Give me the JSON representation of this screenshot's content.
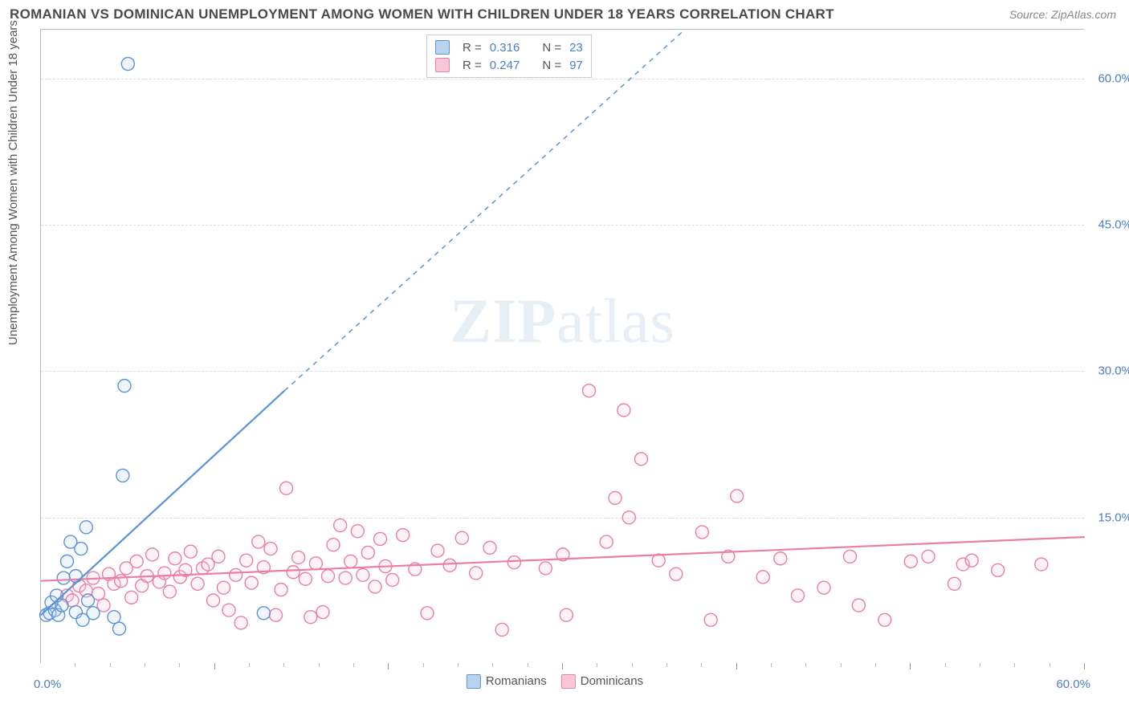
{
  "header": {
    "title": "ROMANIAN VS DOMINICAN UNEMPLOYMENT AMONG WOMEN WITH CHILDREN UNDER 18 YEARS CORRELATION CHART",
    "source": "Source: ZipAtlas.com"
  },
  "watermark": {
    "prefix": "ZIP",
    "suffix": "atlas"
  },
  "chart": {
    "type": "scatter",
    "y_label": "Unemployment Among Women with Children Under 18 years",
    "xlim": [
      0,
      60
    ],
    "ylim": [
      0,
      65
    ],
    "y_ticks": [
      15,
      30,
      45,
      60
    ],
    "y_tick_labels": [
      "15.0%",
      "30.0%",
      "45.0%",
      "60.0%"
    ],
    "x_origin_label": "0.0%",
    "x_end_label": "60.0%",
    "x_major_ticks": [
      10,
      20,
      30,
      40,
      50,
      60
    ],
    "x_minor_ticks": [
      2,
      4,
      6,
      8,
      12,
      14,
      16,
      18,
      22,
      24,
      26,
      28,
      32,
      34,
      36,
      38,
      42,
      44,
      46,
      48,
      52,
      54,
      56,
      58
    ],
    "grid_color": "#dddddd",
    "marker_radius": 8,
    "marker_stroke_width": 1.4,
    "marker_fill_opacity": 0.22,
    "line_width": 2.2
  },
  "series": {
    "romanians": {
      "label": "Romanians",
      "stroke": "#5b93d6",
      "fill": "#b9d2ee",
      "swatch_fill": "#b9d2ee",
      "swatch_border": "#5b93d6",
      "trend": {
        "x1": 0,
        "y1": 5,
        "x2": 14,
        "y2": 28,
        "dash_extend_to_x": 37,
        "dash_extend_to_y": 65
      },
      "points_xy": [
        [
          0.3,
          5.0
        ],
        [
          0.5,
          5.2
        ],
        [
          0.8,
          5.5
        ],
        [
          1.0,
          5.0
        ],
        [
          1.2,
          6.0
        ],
        [
          0.6,
          6.3
        ],
        [
          0.9,
          7.0
        ],
        [
          1.3,
          8.8
        ],
        [
          1.5,
          10.5
        ],
        [
          1.7,
          12.5
        ],
        [
          2.0,
          9.0
        ],
        [
          2.3,
          11.8
        ],
        [
          2.6,
          14.0
        ],
        [
          2.0,
          5.3
        ],
        [
          2.4,
          4.5
        ],
        [
          2.7,
          6.5
        ],
        [
          3.0,
          5.2
        ],
        [
          4.2,
          4.8
        ],
        [
          4.5,
          3.6
        ],
        [
          4.7,
          19.3
        ],
        [
          4.8,
          28.5
        ],
        [
          5.0,
          61.5
        ],
        [
          12.8,
          5.2
        ]
      ]
    },
    "dominicans": {
      "label": "Dominicans",
      "stroke": "#e97fa6",
      "fill": "#f7c7d7",
      "swatch_fill": "#f7c7d7",
      "swatch_border": "#e97fa6",
      "trend": {
        "x1": 0,
        "y1": 8.5,
        "x2": 60,
        "y2": 13
      },
      "points_xy": [
        [
          1.5,
          7.0
        ],
        [
          1.8,
          6.5
        ],
        [
          2.2,
          8.0
        ],
        [
          2.6,
          7.5
        ],
        [
          3.0,
          8.8
        ],
        [
          3.3,
          7.2
        ],
        [
          3.6,
          6.0
        ],
        [
          3.9,
          9.2
        ],
        [
          4.2,
          8.2
        ],
        [
          4.6,
          8.5
        ],
        [
          4.9,
          9.8
        ],
        [
          5.2,
          6.8
        ],
        [
          5.5,
          10.5
        ],
        [
          5.8,
          8.0
        ],
        [
          6.1,
          9.0
        ],
        [
          6.4,
          11.2
        ],
        [
          6.8,
          8.4
        ],
        [
          7.1,
          9.3
        ],
        [
          7.4,
          7.4
        ],
        [
          7.7,
          10.8
        ],
        [
          8.0,
          8.9
        ],
        [
          8.3,
          9.6
        ],
        [
          8.6,
          11.5
        ],
        [
          9.0,
          8.2
        ],
        [
          9.3,
          9.8
        ],
        [
          9.6,
          10.2
        ],
        [
          9.9,
          6.5
        ],
        [
          10.2,
          11.0
        ],
        [
          10.5,
          7.8
        ],
        [
          10.8,
          5.5
        ],
        [
          11.2,
          9.1
        ],
        [
          11.5,
          4.2
        ],
        [
          11.8,
          10.6
        ],
        [
          12.1,
          8.3
        ],
        [
          12.5,
          12.5
        ],
        [
          12.8,
          9.9
        ],
        [
          13.2,
          11.8
        ],
        [
          13.5,
          5.0
        ],
        [
          13.8,
          7.6
        ],
        [
          14.1,
          18.0
        ],
        [
          14.5,
          9.4
        ],
        [
          14.8,
          10.9
        ],
        [
          15.2,
          8.7
        ],
        [
          15.5,
          4.8
        ],
        [
          15.8,
          10.3
        ],
        [
          16.2,
          5.3
        ],
        [
          16.5,
          9.0
        ],
        [
          16.8,
          12.2
        ],
        [
          17.2,
          14.2
        ],
        [
          17.5,
          8.8
        ],
        [
          17.8,
          10.5
        ],
        [
          18.2,
          13.6
        ],
        [
          18.5,
          9.1
        ],
        [
          18.8,
          11.4
        ],
        [
          19.2,
          7.9
        ],
        [
          19.5,
          12.8
        ],
        [
          19.8,
          10.0
        ],
        [
          20.2,
          8.6
        ],
        [
          20.8,
          13.2
        ],
        [
          21.5,
          9.7
        ],
        [
          22.2,
          5.2
        ],
        [
          22.8,
          11.6
        ],
        [
          23.5,
          10.1
        ],
        [
          24.2,
          12.9
        ],
        [
          25.0,
          9.3
        ],
        [
          25.8,
          11.9
        ],
        [
          26.5,
          3.5
        ],
        [
          27.2,
          10.4
        ],
        [
          29.0,
          9.8
        ],
        [
          30.0,
          11.2
        ],
        [
          30.2,
          5.0
        ],
        [
          31.5,
          28.0
        ],
        [
          32.5,
          12.5
        ],
        [
          33.0,
          17.0
        ],
        [
          33.5,
          26.0
        ],
        [
          33.8,
          15.0
        ],
        [
          34.5,
          21.0
        ],
        [
          35.5,
          10.6
        ],
        [
          36.5,
          9.2
        ],
        [
          38.0,
          13.5
        ],
        [
          38.5,
          4.5
        ],
        [
          39.5,
          11.0
        ],
        [
          40.0,
          17.2
        ],
        [
          41.5,
          8.9
        ],
        [
          42.5,
          10.8
        ],
        [
          43.5,
          7.0
        ],
        [
          45.0,
          7.8
        ],
        [
          46.5,
          11.0
        ],
        [
          47.0,
          6.0
        ],
        [
          48.5,
          4.5
        ],
        [
          50.0,
          10.5
        ],
        [
          51.0,
          11.0
        ],
        [
          52.5,
          8.2
        ],
        [
          53.0,
          10.2
        ],
        [
          53.5,
          10.6
        ],
        [
          55.0,
          9.6
        ],
        [
          57.5,
          10.2
        ]
      ]
    }
  },
  "stats": {
    "rows": [
      {
        "series_key": "romanians",
        "r_label": "R =",
        "r": "0.316",
        "n_label": "N =",
        "n": "23"
      },
      {
        "series_key": "dominicans",
        "r_label": "R =",
        "r": "0.247",
        "n_label": "N =",
        "n": "97"
      }
    ]
  },
  "legend": {
    "items": [
      {
        "series_key": "romanians"
      },
      {
        "series_key": "dominicans"
      }
    ]
  }
}
